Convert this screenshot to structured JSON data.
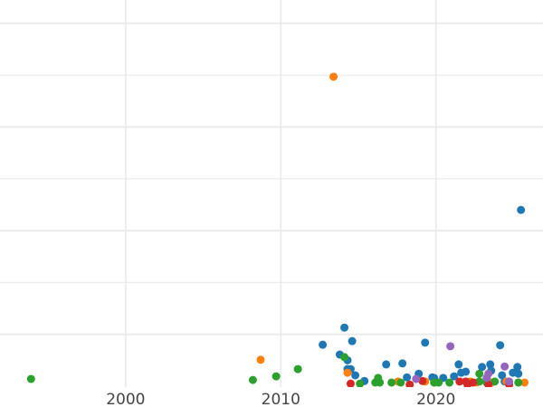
{
  "chart_data": {
    "type": "scatter",
    "title": "",
    "xlabel": "",
    "ylabel": "",
    "xlim": [
      1991.9,
      2026.9
    ],
    "ylim": [
      0,
      7.45
    ],
    "x_ticks": [
      2000,
      2010,
      2020
    ],
    "x_tick_labels": [
      "2000",
      "2010",
      "2020"
    ],
    "y_gridlines": [
      1,
      2,
      3,
      4,
      5,
      6,
      7
    ],
    "grid": true,
    "legend": "none",
    "series": [
      {
        "color": "#1f77b4",
        "points": [
          [
            2025.48,
            3.4
          ],
          [
            2014.1,
            1.13
          ],
          [
            2012.7,
            0.8
          ],
          [
            2014.6,
            0.87
          ],
          [
            2019.3,
            0.84
          ],
          [
            2024.14,
            0.79
          ],
          [
            2013.8,
            0.61
          ],
          [
            2014.3,
            0.5
          ],
          [
            2014.3,
            0.33
          ],
          [
            2014.5,
            0.33
          ],
          [
            2014.8,
            0.21
          ],
          [
            2015.39,
            0.1
          ],
          [
            2016.79,
            0.42
          ],
          [
            2017.84,
            0.44
          ],
          [
            2018.13,
            0.17
          ],
          [
            2018.89,
            0.24
          ],
          [
            2019.77,
            0.17
          ],
          [
            2019.88,
            0.16
          ],
          [
            2020.47,
            0.16
          ],
          [
            2021.17,
            0.19
          ],
          [
            2021.46,
            0.42
          ],
          [
            2021.63,
            0.26
          ],
          [
            2021.92,
            0.28
          ],
          [
            2022.97,
            0.37
          ],
          [
            2023.5,
            0.42
          ],
          [
            2023.56,
            0.3
          ],
          [
            2024.26,
            0.21
          ],
          [
            2024.96,
            0.26
          ],
          [
            2025.25,
            0.37
          ],
          [
            2025.31,
            0.24
          ],
          [
            2024.43,
            0.09
          ]
        ]
      },
      {
        "color": "#ff7f0e",
        "points": [
          [
            2013.4,
            5.97
          ],
          [
            2008.7,
            0.51
          ],
          [
            2014.3,
            0.26
          ],
          [
            2017.55,
            0.09
          ],
          [
            2019.3,
            0.09
          ],
          [
            2022.22,
            0.09
          ],
          [
            2024.55,
            0.09
          ],
          [
            2025.71,
            0.07
          ],
          [
            2023.56,
            0.07
          ],
          [
            2022.62,
            0.07
          ]
        ]
      },
      {
        "color": "#2ca02c",
        "points": [
          [
            1993.9,
            0.14
          ],
          [
            2008.2,
            0.12
          ],
          [
            2009.7,
            0.19
          ],
          [
            2011.1,
            0.33
          ],
          [
            2014.1,
            0.56
          ],
          [
            2015.1,
            0.05
          ],
          [
            2016.09,
            0.07
          ],
          [
            2016.27,
            0.16
          ],
          [
            2016.38,
            0.07
          ],
          [
            2017.14,
            0.07
          ],
          [
            2017.73,
            0.07
          ],
          [
            2019.88,
            0.07
          ],
          [
            2020.17,
            0.07
          ],
          [
            2020.87,
            0.07
          ],
          [
            2022.8,
            0.24
          ],
          [
            2022.8,
            0.09
          ],
          [
            2023.27,
            0.07
          ],
          [
            2023.79,
            0.09
          ],
          [
            2025.31,
            0.07
          ]
        ]
      },
      {
        "color": "#d62728",
        "points": [
          [
            2014.5,
            0.05
          ],
          [
            2018.31,
            0.03
          ],
          [
            2019.13,
            0.1
          ],
          [
            2021.52,
            0.09
          ],
          [
            2021.92,
            0.09
          ],
          [
            2022.39,
            0.07
          ],
          [
            2023.38,
            0.03
          ],
          [
            2022.04,
            0.03
          ],
          [
            2024.72,
            0.03
          ]
        ]
      },
      {
        "color": "#9467bd",
        "points": [
          [
            2020.93,
            0.77
          ],
          [
            2018.72,
            0.14
          ],
          [
            2023.38,
            0.24
          ],
          [
            2023.27,
            0.16
          ],
          [
            2024.43,
            0.38
          ],
          [
            2024.72,
            0.09
          ]
        ]
      }
    ]
  }
}
